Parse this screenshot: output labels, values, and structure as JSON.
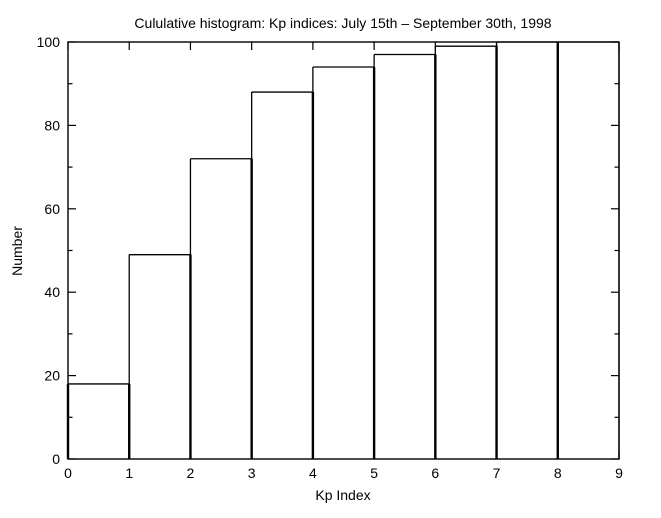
{
  "chart_data": {
    "type": "bar",
    "subtype": "cumulative-histogram",
    "title": "Cululative histogram: Kp indices: July 15th – September 30th, 1998",
    "xlabel": "Kp Index",
    "ylabel": "Number",
    "bin_edges": [
      0,
      1,
      2,
      3,
      4,
      5,
      6,
      7,
      8,
      9
    ],
    "values": [
      18,
      49,
      72,
      88,
      94,
      97,
      99,
      100,
      100
    ],
    "xlim": [
      0,
      9
    ],
    "ylim": [
      0,
      100
    ],
    "xticks": [
      0,
      1,
      2,
      3,
      4,
      5,
      6,
      7,
      8,
      9
    ],
    "yticks": [
      0,
      20,
      40,
      60,
      80,
      100
    ],
    "yticks_minor": [
      10,
      30,
      50,
      70,
      90
    ],
    "grid": false,
    "legend_position": "none",
    "bar_fill": "none",
    "line_color": "#000000",
    "background_color": "#ffffff"
  }
}
